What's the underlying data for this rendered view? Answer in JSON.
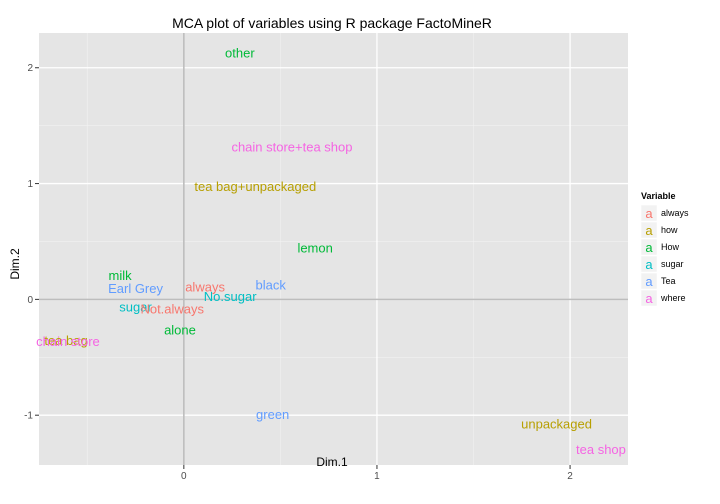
{
  "chart_data": {
    "type": "scatter",
    "title": "MCA plot of variables using R package FactoMineR",
    "xlabel": "Dim.1",
    "ylabel": "Dim.2",
    "xlim": [
      -0.75,
      2.3
    ],
    "ylim": [
      -1.43,
      2.3
    ],
    "x_ticks": [
      0,
      1,
      2
    ],
    "x_tick_labels": [
      "0",
      "1",
      "2"
    ],
    "y_ticks": [
      -1,
      0,
      1,
      2
    ],
    "y_tick_labels": [
      "-1",
      "0",
      "1",
      "2"
    ],
    "grid": true,
    "legend_position": "right",
    "legend": {
      "title": "Variable",
      "glyph": "a",
      "entries": [
        {
          "name": "always",
          "color": "#f8766d"
        },
        {
          "name": "how",
          "color": "#b79f00"
        },
        {
          "name": "How",
          "color": "#00ba38"
        },
        {
          "name": "sugar",
          "color": "#00bfc4"
        },
        {
          "name": "Tea",
          "color": "#619cff"
        },
        {
          "name": "where",
          "color": "#f564e3"
        }
      ]
    },
    "points": [
      {
        "label": "other",
        "x": 0.29,
        "y": 2.13,
        "variable": "How"
      },
      {
        "label": "chain store+tea shop",
        "x": 0.56,
        "y": 1.32,
        "variable": "where"
      },
      {
        "label": "tea bag+unpackaged",
        "x": 0.37,
        "y": 0.98,
        "variable": "how"
      },
      {
        "label": "lemon",
        "x": 0.68,
        "y": 0.45,
        "variable": "How"
      },
      {
        "label": "milk",
        "x": -0.33,
        "y": 0.21,
        "variable": "How"
      },
      {
        "label": "Earl Grey",
        "x": -0.25,
        "y": 0.1,
        "variable": "Tea"
      },
      {
        "label": "always",
        "x": 0.11,
        "y": 0.11,
        "variable": "always"
      },
      {
        "label": "black",
        "x": 0.45,
        "y": 0.13,
        "variable": "Tea"
      },
      {
        "label": "No.sugar",
        "x": 0.24,
        "y": 0.03,
        "variable": "sugar"
      },
      {
        "label": "sugar",
        "x": -0.25,
        "y": -0.06,
        "variable": "sugar"
      },
      {
        "label": "Not.always",
        "x": -0.06,
        "y": -0.08,
        "variable": "always"
      },
      {
        "label": "alone",
        "x": -0.02,
        "y": -0.26,
        "variable": "How"
      },
      {
        "label": "tea bag",
        "x": -0.61,
        "y": -0.35,
        "variable": "how"
      },
      {
        "label": "chain store",
        "x": -0.6,
        "y": -0.36,
        "variable": "where"
      },
      {
        "label": "green",
        "x": 0.46,
        "y": -0.99,
        "variable": "Tea"
      },
      {
        "label": "unpackaged",
        "x": 1.93,
        "y": -1.07,
        "variable": "how"
      },
      {
        "label": "tea shop",
        "x": 2.16,
        "y": -1.29,
        "variable": "where"
      }
    ]
  }
}
